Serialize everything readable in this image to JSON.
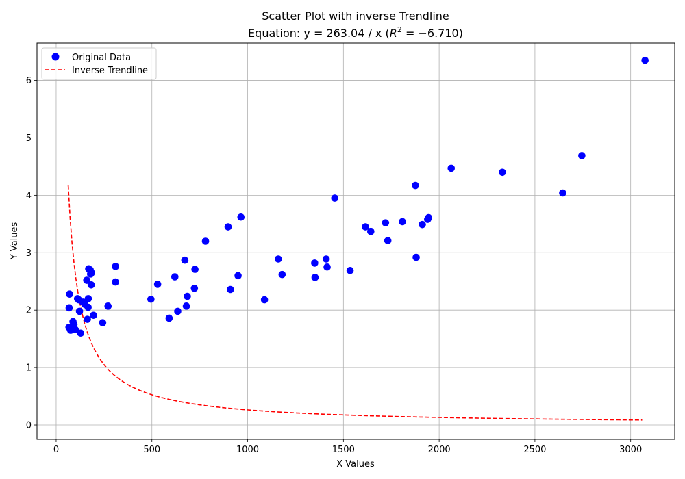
{
  "chart_data": {
    "type": "scatter",
    "title": "Scatter Plot with inverse Trendline",
    "subtitle_prefix": "Equation: y = 263.04 / x (",
    "subtitle_r2_symbol": "R",
    "subtitle_r2_exponent": "2",
    "subtitle_suffix": " = −6.710)",
    "xlabel": "X Values",
    "ylabel": "Y Values",
    "xlim": [
      -100,
      3230
    ],
    "ylim": [
      -0.25,
      6.65
    ],
    "xticks": [
      0,
      500,
      1000,
      1500,
      2000,
      2500,
      3000
    ],
    "yticks": [
      0,
      1,
      2,
      3,
      4,
      5,
      6
    ],
    "grid": true,
    "legend_position": "top-left",
    "legend": [
      {
        "label": "Original Data",
        "marker": "circle",
        "color": "#0000ff"
      },
      {
        "label": "Inverse Trendline",
        "marker": "dashed-line",
        "color": "#ff0000"
      }
    ],
    "series": [
      {
        "name": "Original Data",
        "kind": "scatter",
        "color": "#0000ff",
        "points": [
          [
            70,
            2.28
          ],
          [
            68,
            2.04
          ],
          [
            67,
            1.7
          ],
          [
            76,
            1.65
          ],
          [
            88,
            1.8
          ],
          [
            93,
            1.75
          ],
          [
            100,
            1.66
          ],
          [
            112,
            2.2
          ],
          [
            118,
            2.18
          ],
          [
            122,
            1.98
          ],
          [
            128,
            1.6
          ],
          [
            140,
            2.14
          ],
          [
            150,
            2.1
          ],
          [
            160,
            2.52
          ],
          [
            163,
            1.84
          ],
          [
            167,
            2.05
          ],
          [
            168,
            2.2
          ],
          [
            170,
            2.72
          ],
          [
            178,
            2.7
          ],
          [
            180,
            2.63
          ],
          [
            185,
            2.65
          ],
          [
            183,
            2.44
          ],
          [
            195,
            1.91
          ],
          [
            243,
            1.78
          ],
          [
            271,
            2.07
          ],
          [
            310,
            2.76
          ],
          [
            310,
            2.49
          ],
          [
            495,
            2.19
          ],
          [
            530,
            2.45
          ],
          [
            590,
            1.86
          ],
          [
            620,
            2.58
          ],
          [
            635,
            1.98
          ],
          [
            672,
            2.87
          ],
          [
            680,
            2.07
          ],
          [
            685,
            2.24
          ],
          [
            722,
            2.38
          ],
          [
            725,
            2.71
          ],
          [
            780,
            3.2
          ],
          [
            898,
            3.45
          ],
          [
            910,
            2.36
          ],
          [
            950,
            2.6
          ],
          [
            965,
            3.62
          ],
          [
            1088,
            2.18
          ],
          [
            1160,
            2.89
          ],
          [
            1180,
            2.62
          ],
          [
            1350,
            2.82
          ],
          [
            1352,
            2.57
          ],
          [
            1410,
            2.89
          ],
          [
            1415,
            2.75
          ],
          [
            1455,
            3.95
          ],
          [
            1535,
            2.69
          ],
          [
            1615,
            3.45
          ],
          [
            1643,
            3.37
          ],
          [
            1720,
            3.52
          ],
          [
            1732,
            3.21
          ],
          [
            1808,
            3.54
          ],
          [
            1876,
            4.17
          ],
          [
            1880,
            2.92
          ],
          [
            1912,
            3.49
          ],
          [
            1940,
            3.58
          ],
          [
            1945,
            3.61
          ],
          [
            2063,
            4.47
          ],
          [
            2330,
            4.4
          ],
          [
            2645,
            4.04
          ],
          [
            2745,
            4.69
          ],
          [
            3075,
            6.35
          ]
        ]
      },
      {
        "name": "Inverse Trendline",
        "kind": "line",
        "style": "dashed",
        "color": "#ff0000",
        "coefficient": 263.04,
        "x_range": [
          63,
          3060
        ]
      }
    ]
  }
}
